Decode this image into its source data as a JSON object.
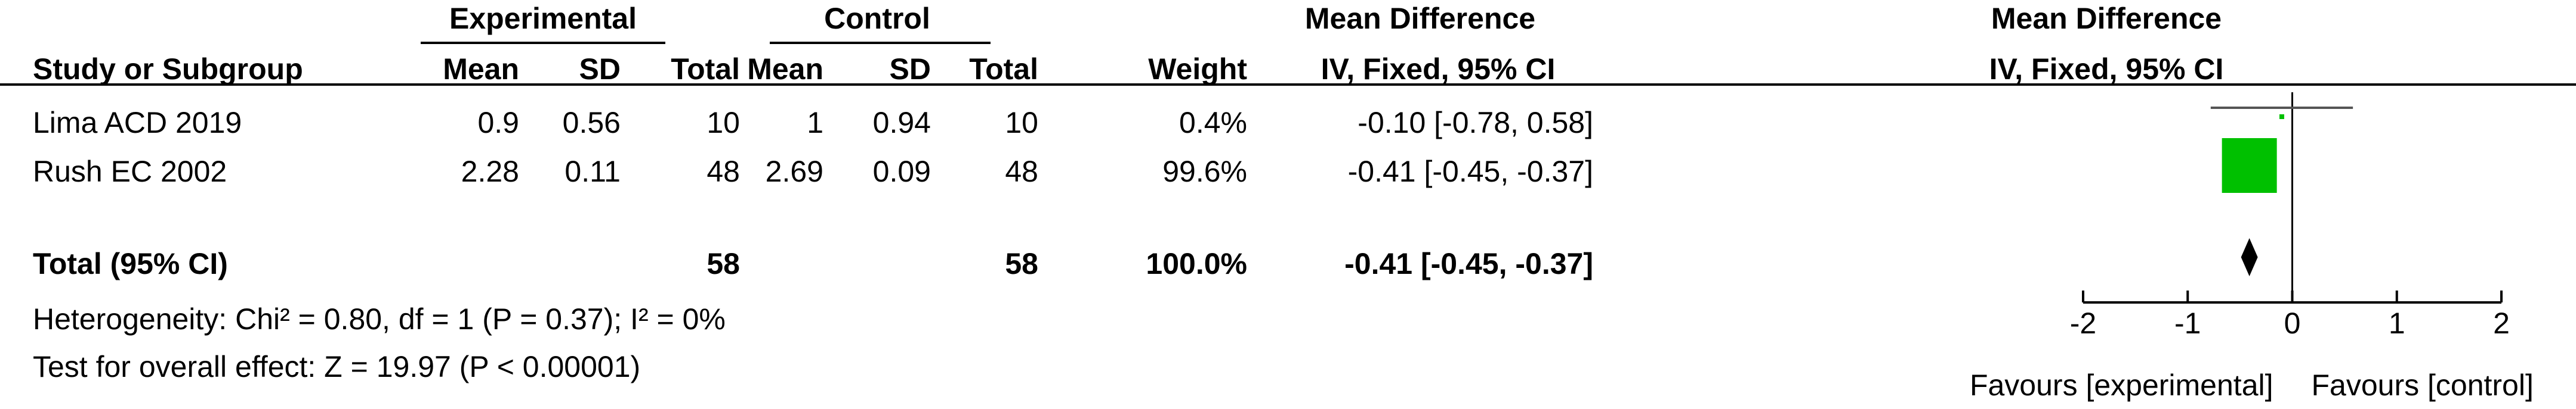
{
  "header": {
    "group_experimental": "Experimental",
    "group_control": "Control",
    "mean_difference_table": "Mean Difference",
    "mean_difference_plot": "Mean Difference",
    "col_study": "Study or Subgroup",
    "col_exp_mean": "Mean",
    "col_exp_sd": "SD",
    "col_exp_total": "Total",
    "col_ctl_mean": "Mean",
    "col_ctl_sd": "SD",
    "col_ctl_total": "Total",
    "col_weight": "Weight",
    "col_md": "IV, Fixed, 95% CI",
    "plot_method": "IV, Fixed, 95% CI"
  },
  "studies": [
    {
      "name": "Lima ACD 2019",
      "exp_mean": "0.9",
      "exp_sd": "0.56",
      "exp_total": "10",
      "ctl_mean": "1",
      "ctl_sd": "0.94",
      "ctl_total": "10",
      "weight": "0.4%",
      "md_text": "-0.10 [-0.78, 0.58]"
    },
    {
      "name": "Rush EC 2002",
      "exp_mean": "2.28",
      "exp_sd": "0.11",
      "exp_total": "48",
      "ctl_mean": "2.69",
      "ctl_sd": "0.09",
      "ctl_total": "48",
      "weight": "99.6%",
      "md_text": "-0.41 [-0.45, -0.37]"
    }
  ],
  "total": {
    "label": "Total (95% CI)",
    "exp_total": "58",
    "ctl_total": "58",
    "weight": "100.0%",
    "md_text": "-0.41 [-0.45, -0.37]"
  },
  "heterogeneity": "Heterogeneity: Chi² = 0.80, df = 1 (P = 0.37); I² = 0%",
  "overall_effect": "Test for overall effect: Z = 19.97 (P < 0.00001)",
  "colors": {
    "square": "#00c000",
    "line": "#555555",
    "diamond": "#000000"
  },
  "chart_data": {
    "type": "forest",
    "xlim": [
      -2,
      2
    ],
    "ticks": [
      -2,
      -1,
      0,
      1,
      2
    ],
    "tick_labels": [
      "-2",
      "-1",
      "0",
      "1",
      "2"
    ],
    "favours_left": "Favours [experimental]",
    "favours_right": "Favours [control]",
    "studies": [
      {
        "name": "Lima ACD 2019",
        "md": -0.1,
        "ci": [
          -0.78,
          0.58
        ],
        "weight": 0.4
      },
      {
        "name": "Rush EC 2002",
        "md": -0.41,
        "ci": [
          -0.45,
          -0.37
        ],
        "weight": 99.6
      }
    ],
    "overall": {
      "md": -0.41,
      "ci": [
        -0.45,
        -0.37
      ]
    }
  }
}
